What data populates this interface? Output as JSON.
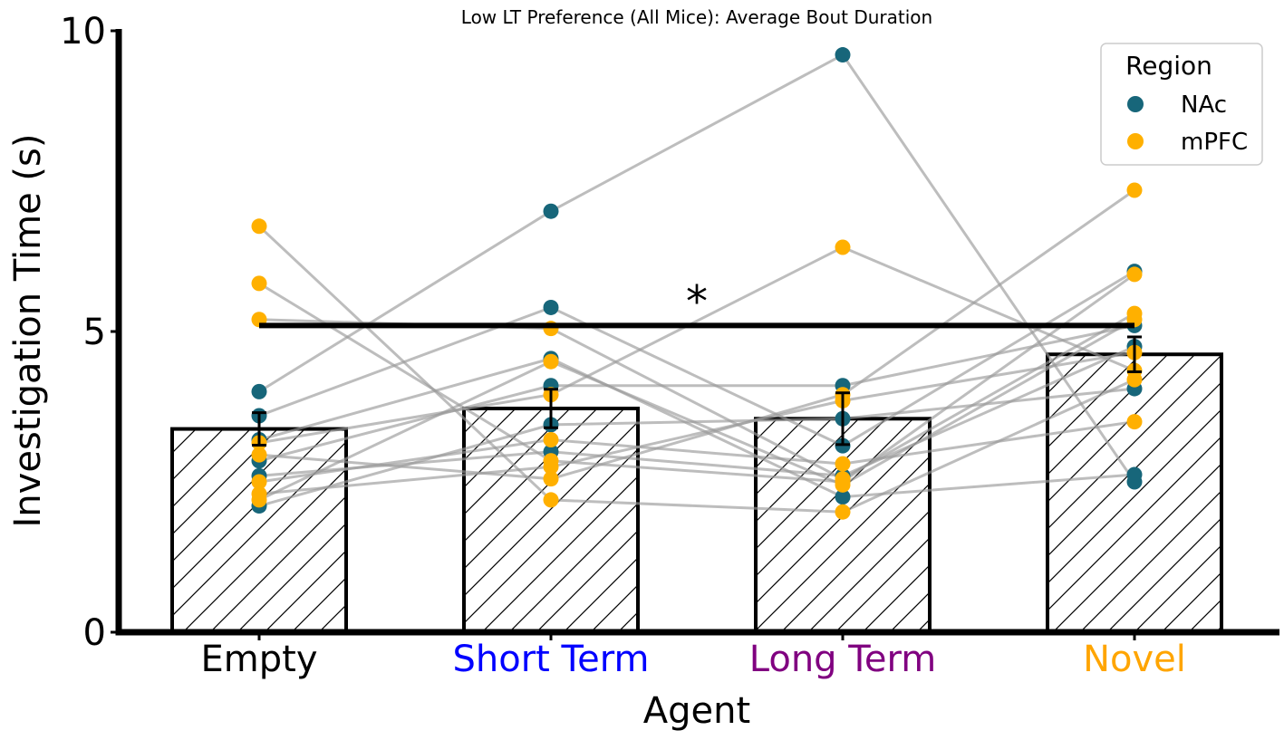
{
  "chart_data": {
    "type": "bar",
    "title": "Low LT Preference (All Mice): Average Bout Duration",
    "xlabel": "Agent",
    "ylabel": "Investigation Time (s)",
    "ylim": [
      0,
      10
    ],
    "yticks": [
      0,
      5,
      10
    ],
    "categories": [
      "Empty",
      "Short Term",
      "Long Term",
      "Novel"
    ],
    "category_colors": [
      "#000000",
      "#0000ff",
      "#800080",
      "#ffa500"
    ],
    "bar_hatch": "diagonal",
    "values": [
      3.38,
      3.72,
      3.55,
      4.62
    ],
    "errors": [
      0.27,
      0.32,
      0.43,
      0.29
    ],
    "significance": {
      "from": "Empty",
      "to": "Novel",
      "y": 5.1,
      "label": "*"
    },
    "legend": {
      "title": "Region",
      "position": "top-right",
      "entries": [
        {
          "label": "NAc",
          "color": "#17667a"
        },
        {
          "label": "mPFC",
          "color": "#ffb000"
        }
      ]
    },
    "subjects": [
      {
        "region": "NAc",
        "values": [
          4.0,
          7.0,
          9.6,
          2.5
        ]
      },
      {
        "region": "NAc",
        "values": [
          3.6,
          5.4,
          3.1,
          6.0
        ]
      },
      {
        "region": "NAc",
        "values": [
          3.2,
          4.55,
          2.25,
          2.62
        ]
      },
      {
        "region": "NAc",
        "values": [
          2.85,
          4.1,
          4.1,
          5.1
        ]
      },
      {
        "region": "NAc",
        "values": [
          2.1,
          3.45,
          3.55,
          4.05
        ]
      },
      {
        "region": "NAc",
        "values": [
          2.6,
          3.0,
          2.6,
          4.75
        ]
      },
      {
        "region": "mPFC",
        "values": [
          6.75,
          2.2,
          2.0,
          4.2
        ]
      },
      {
        "region": "mPFC",
        "values": [
          5.8,
          2.85,
          2.5,
          5.95
        ]
      },
      {
        "region": "mPFC",
        "values": [
          5.2,
          5.05,
          2.55,
          5.3
        ]
      },
      {
        "region": "mPFC",
        "values": [
          3.15,
          3.95,
          6.4,
          4.35
        ]
      },
      {
        "region": "mPFC",
        "values": [
          2.95,
          2.55,
          3.95,
          7.35
        ]
      },
      {
        "region": "mPFC",
        "values": [
          2.5,
          3.2,
          2.8,
          3.5
        ]
      },
      {
        "region": "mPFC",
        "values": [
          2.3,
          2.75,
          3.85,
          4.65
        ]
      },
      {
        "region": "mPFC",
        "values": [
          2.2,
          4.5,
          2.45,
          5.2
        ]
      }
    ]
  }
}
